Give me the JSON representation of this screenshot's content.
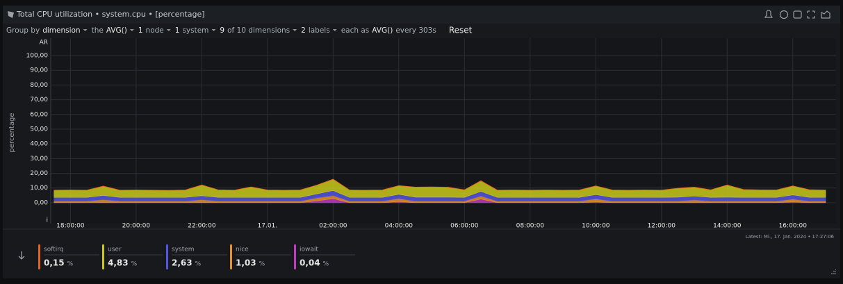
{
  "chart_data": {
    "type": "stacked_area",
    "title": "Total CPU utilization • system.cpu • [percentage]",
    "y_label": "percentage",
    "y_top_text": "AR",
    "y_bottom_text": "i",
    "ylim": [
      -14.2,
      111.8
    ],
    "yticks": [
      {
        "value": 0,
        "label": "0,00"
      },
      {
        "value": 10,
        "label": "10,00"
      },
      {
        "value": 20,
        "label": "20,00"
      },
      {
        "value": 30,
        "label": "30,00"
      },
      {
        "value": 40,
        "label": "40,00"
      },
      {
        "value": 50,
        "label": "50,00"
      },
      {
        "value": 60,
        "label": "60,00"
      },
      {
        "value": 70,
        "label": "70,00"
      },
      {
        "value": 80,
        "label": "80,00"
      },
      {
        "value": 90,
        "label": "90,00"
      },
      {
        "value": 100,
        "label": "100,00"
      }
    ],
    "xlim": [
      "17:24:00",
      "17:19:00"
    ],
    "xticks": [
      "18:00:00",
      "20:00:00",
      "22:00:00",
      {
        "value": "00:00:00",
        "label": "17.01."
      },
      "02:00:00",
      "04:00:00",
      "06:00:00",
      "08:00:00",
      "10:00:00",
      "12:00:00",
      "14:00:00",
      "16:00:00"
    ],
    "grid": true,
    "unit": "%",
    "x": [
      "17:30:00",
      "18:00:00",
      "18:30:00",
      "19:00:00",
      "19:30:00",
      "20:00:00",
      "20:30:00",
      "21:00:00",
      "21:30:00",
      "22:00:00",
      "22:30:00",
      "23:00:00",
      "23:30:00",
      "00:00:00",
      "00:30:00",
      "01:00:00",
      "01:30:00",
      "02:00:00",
      "02:30:00",
      "03:00:00",
      "03:30:00",
      "04:00:00",
      "04:30:00",
      "05:00:00",
      "05:30:00",
      "06:00:00",
      "06:30:00",
      "07:00:00",
      "07:30:00",
      "08:00:00",
      "08:30:00",
      "09:00:00",
      "09:30:00",
      "10:00:00",
      "10:30:00",
      "11:00:00",
      "11:30:00",
      "12:00:00",
      "12:30:00",
      "13:00:00",
      "13:30:00",
      "14:00:00",
      "14:30:00",
      "15:00:00",
      "15:30:00",
      "16:00:00",
      "16:30:00",
      "17:00:00"
    ],
    "series": [
      {
        "name": "softirq",
        "color": "#e0661f",
        "latest": 0.15,
        "latest_label": "0,15",
        "values": [
          0.15,
          0.15,
          0.15,
          0.2,
          0.15,
          0.15,
          0.15,
          0.15,
          0.15,
          0.2,
          0.15,
          0.15,
          0.15,
          0.15,
          0.15,
          0.15,
          0.2,
          0.3,
          0.15,
          0.15,
          0.15,
          0.2,
          0.15,
          0.15,
          0.15,
          0.15,
          0.3,
          0.15,
          0.15,
          0.15,
          0.15,
          0.15,
          0.15,
          0.2,
          0.15,
          0.15,
          0.15,
          0.15,
          0.15,
          0.2,
          0.15,
          0.15,
          0.15,
          0.15,
          0.15,
          0.2,
          0.15,
          0.15
        ]
      },
      {
        "name": "user",
        "color": "#c9c91c",
        "latest": 4.83,
        "latest_label": "4,83",
        "values": [
          4.8,
          4.9,
          4.8,
          6.2,
          4.8,
          4.9,
          4.8,
          4.7,
          4.9,
          7.2,
          5.0,
          4.8,
          7.0,
          4.9,
          4.8,
          4.9,
          5.8,
          7.5,
          4.9,
          4.8,
          4.9,
          5.8,
          6.8,
          6.9,
          6.7,
          5.0,
          7.0,
          4.8,
          4.9,
          4.8,
          4.9,
          4.8,
          4.9,
          5.8,
          4.9,
          4.8,
          4.9,
          4.8,
          6.0,
          5.9,
          5.0,
          8.2,
          5.2,
          5.0,
          4.9,
          6.0,
          5.1,
          4.83
        ]
      },
      {
        "name": "system",
        "color": "#5555e0",
        "latest": 2.63,
        "latest_label": "2,63",
        "values": [
          2.6,
          2.6,
          2.6,
          2.9,
          2.6,
          2.6,
          2.6,
          2.6,
          2.6,
          2.7,
          2.6,
          2.6,
          2.6,
          2.6,
          2.6,
          2.6,
          2.8,
          3.5,
          2.6,
          2.6,
          2.6,
          2.9,
          2.7,
          2.7,
          2.7,
          2.6,
          3.2,
          2.6,
          2.6,
          2.6,
          2.6,
          2.6,
          2.6,
          2.9,
          2.6,
          2.6,
          2.6,
          2.6,
          2.7,
          2.7,
          2.6,
          2.7,
          2.6,
          2.6,
          2.6,
          2.9,
          2.6,
          2.63
        ]
      },
      {
        "name": "nice",
        "color": "#e8932a",
        "latest": 1.03,
        "latest_label": "1,03",
        "values": [
          1.0,
          1.0,
          1.0,
          2.0,
          1.0,
          1.0,
          1.0,
          1.0,
          1.0,
          2.0,
          1.0,
          1.0,
          1.0,
          1.0,
          1.0,
          1.0,
          2.0,
          2.0,
          1.0,
          1.0,
          1.0,
          2.0,
          1.0,
          1.0,
          1.0,
          1.0,
          2.0,
          1.0,
          1.0,
          1.0,
          1.0,
          1.0,
          1.0,
          2.0,
          1.0,
          1.0,
          1.0,
          1.0,
          1.0,
          1.8,
          1.0,
          1.0,
          1.0,
          1.0,
          1.0,
          1.8,
          1.0,
          1.03
        ]
      },
      {
        "name": "iowait",
        "color": "#c03cc0",
        "latest": 0.04,
        "latest_label": "0,04",
        "values": [
          0.05,
          0.05,
          0.05,
          0.05,
          0.05,
          0.05,
          0.05,
          0.05,
          0.05,
          0.05,
          0.05,
          0.05,
          0.05,
          0.05,
          0.05,
          0.05,
          1.2,
          2.8,
          0.05,
          0.05,
          0.05,
          0.8,
          0.05,
          0.05,
          0.05,
          0.05,
          2.5,
          0.05,
          0.05,
          0.05,
          0.05,
          0.05,
          0.05,
          0.6,
          0.05,
          0.05,
          0.05,
          0.05,
          0.05,
          0.05,
          0.05,
          0.05,
          0.05,
          0.05,
          0.05,
          0.6,
          0.05,
          0.04
        ]
      }
    ]
  },
  "ui": {
    "toolbar": [
      "Group by",
      "dimension",
      "the",
      "AVG()",
      1,
      "node",
      1,
      "system",
      9,
      "of 10 dimensions",
      2,
      "labels",
      "each as",
      "AVG()",
      "every 303s",
      "Reset"
    ],
    "latest": "Latest:  Mi., 17. Jan. 2024 • 17:27:06"
  }
}
